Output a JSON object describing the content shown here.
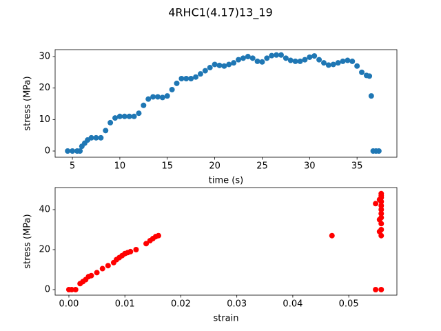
{
  "title": "4RHC1(4.17)13_19",
  "chart_data": [
    {
      "type": "scatter",
      "xlabel": "time (s)",
      "ylabel": "stress (MPa)",
      "x": [
        4.5,
        5,
        5.5,
        5.8,
        6,
        6.3,
        6.6,
        7,
        7.5,
        8,
        8.5,
        9,
        9.5,
        10,
        10.5,
        11,
        11.5,
        12,
        12.5,
        13,
        13.5,
        14,
        14.5,
        15,
        15.5,
        16,
        16.5,
        17,
        17.5,
        18,
        18.5,
        19,
        19.5,
        20,
        20.5,
        21,
        21.5,
        22,
        22.5,
        23,
        23.5,
        24,
        24.5,
        25,
        25.5,
        26,
        26.5,
        27,
        27.5,
        28,
        28.5,
        29,
        29.5,
        30,
        30.5,
        31,
        31.5,
        32,
        32.5,
        33,
        33.5,
        34,
        34.5,
        35,
        35.5,
        36,
        36.3,
        36.5,
        36.7,
        37,
        37.3
      ],
      "values": [
        0,
        0,
        0,
        0,
        1.5,
        2.5,
        3.5,
        4.2,
        4.2,
        4.2,
        6.5,
        9,
        10.5,
        11,
        11,
        11,
        11,
        12,
        14.5,
        16.5,
        17.2,
        17.2,
        17,
        17.5,
        19.5,
        21.5,
        23,
        23,
        23,
        23.5,
        24.5,
        25.5,
        26.5,
        27.5,
        27.2,
        27,
        27.5,
        28,
        29,
        29.5,
        30,
        29.5,
        28.5,
        28.3,
        29.5,
        30.3,
        30.5,
        30.5,
        29.5,
        28.8,
        28.5,
        28.5,
        29,
        29.8,
        30.2,
        29,
        28,
        27.3,
        27.5,
        28,
        28.5,
        28.8,
        28.5,
        27,
        25,
        24,
        23.8,
        17.5,
        0,
        0,
        0
      ],
      "color": "#1f77b4",
      "xlim": [
        3.18,
        39.2
      ],
      "xticks": [
        5,
        10,
        15,
        20,
        25,
        30,
        35
      ],
      "ylim": [
        -1.97,
        32.2
      ],
      "yticks": [
        0,
        10,
        20,
        30
      ]
    },
    {
      "type": "scatter",
      "xlabel": "strain",
      "ylabel": "stress (MPa)",
      "x": [
        0,
        0.0005,
        0.0012,
        0.002,
        0.0025,
        0.003,
        0.0035,
        0.004,
        0.005,
        0.006,
        0.007,
        0.008,
        0.0085,
        0.009,
        0.0095,
        0.01,
        0.0105,
        0.011,
        0.012,
        0.0138,
        0.0145,
        0.015,
        0.0155,
        0.016,
        0.047,
        0.0548,
        0.0548,
        0.0558,
        0.0558,
        0.0558,
        0.0558,
        0.0558,
        0.0558,
        0.0558,
        0.0558,
        0.0558,
        0.0558,
        0.0558,
        0.0558,
        0.0555,
        0.0555,
        0.0555
      ],
      "values": [
        0,
        0,
        0,
        3,
        4,
        5,
        6.5,
        7,
        8.5,
        10.5,
        12,
        13.5,
        15,
        16,
        17,
        18,
        18.5,
        19,
        20,
        23,
        24.5,
        25.5,
        26.5,
        27,
        27,
        43,
        0,
        0,
        27,
        30,
        33,
        36,
        38,
        40,
        42,
        44,
        46,
        47,
        48,
        45,
        35,
        29
      ],
      "color": "#ff0000",
      "xlim": [
        -0.00246,
        0.0586
      ],
      "xticks": [
        {
          "value": 0,
          "label": "0.00"
        },
        {
          "value": 0.01,
          "label": "0.01"
        },
        {
          "value": 0.02,
          "label": "0.02"
        },
        {
          "value": 0.03,
          "label": "0.03"
        },
        {
          "value": 0.04,
          "label": "0.04"
        },
        {
          "value": 0.05,
          "label": "0.05"
        }
      ],
      "ylim": [
        -2.76,
        51.03
      ],
      "yticks": [
        0,
        20,
        40
      ]
    }
  ]
}
